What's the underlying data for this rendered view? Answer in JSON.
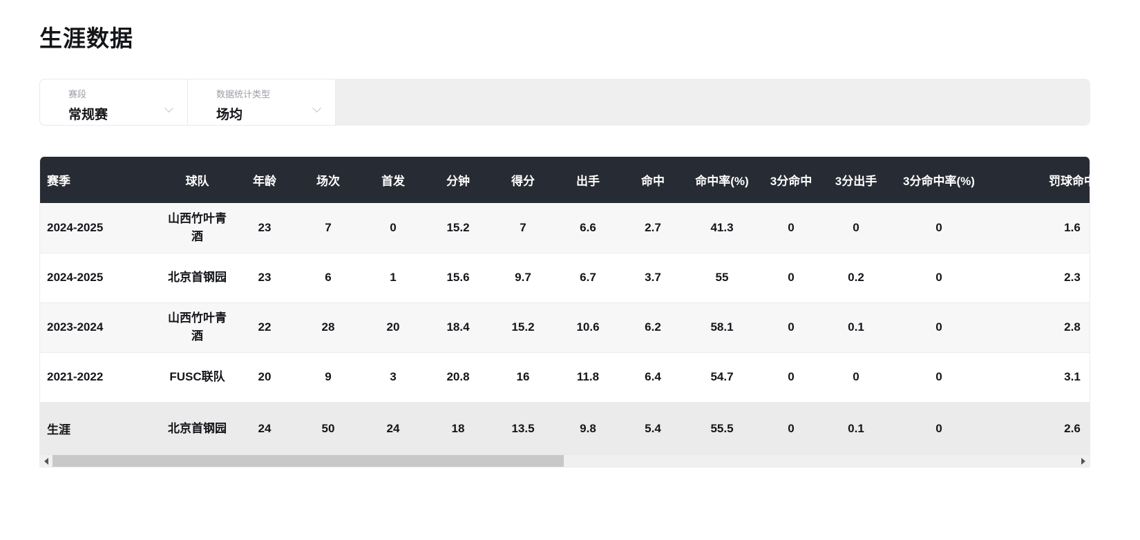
{
  "page": {
    "title": "生涯数据"
  },
  "filters": {
    "stage": {
      "label": "赛段",
      "value": "常规赛"
    },
    "stat_type": {
      "label": "数据统计类型",
      "value": "场均"
    }
  },
  "table": {
    "columns": [
      "赛季",
      "球队",
      "年龄",
      "场次",
      "首发",
      "分钟",
      "得分",
      "出手",
      "命中",
      "命中率(%)",
      "3分命中",
      "3分出手",
      "3分命中率(%)",
      "罚球命中"
    ],
    "rows": [
      [
        "2024-2025",
        "山西竹叶青酒",
        "23",
        "7",
        "0",
        "15.2",
        "7",
        "6.6",
        "2.7",
        "41.3",
        "0",
        "0",
        "0",
        "1.6"
      ],
      [
        "2024-2025",
        "北京首钢园",
        "23",
        "6",
        "1",
        "15.6",
        "9.7",
        "6.7",
        "3.7",
        "55",
        "0",
        "0.2",
        "0",
        "2.3"
      ],
      [
        "2023-2024",
        "山西竹叶青酒",
        "22",
        "28",
        "20",
        "18.4",
        "15.2",
        "10.6",
        "6.2",
        "58.1",
        "0",
        "0.1",
        "0",
        "2.8"
      ],
      [
        "2021-2022",
        "FUSC联队",
        "20",
        "9",
        "3",
        "20.8",
        "16",
        "11.8",
        "6.4",
        "54.7",
        "0",
        "0",
        "0",
        "3.1"
      ]
    ],
    "career_row": [
      "生涯",
      "北京首钢园",
      "24",
      "50",
      "24",
      "18",
      "13.5",
      "9.8",
      "5.4",
      "55.5",
      "0",
      "0.1",
      "0",
      "2.6"
    ]
  },
  "colors": {
    "header-bg": "#272b33",
    "header-text": "#ffffff",
    "row-alt-bg": "#f7f7f8",
    "career-row-bg": "#ebebeb",
    "filter-bg": "#efefef",
    "border": "#e9e9e9",
    "text": "#17181c",
    "label": "#9a9fa6",
    "scroll-track": "#f0f0f0",
    "scroll-thumb": "#c8c8c8"
  }
}
